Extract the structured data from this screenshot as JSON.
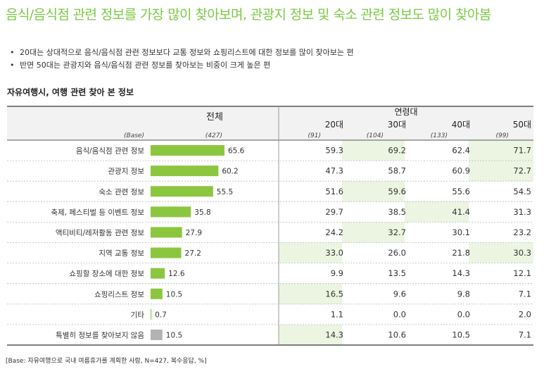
{
  "title": "음식/음식점 관련 정보를 가장 많이 찾아보며, 관광지 정보 및 숙소 관련 정보도 많이 찾아봄",
  "bullets": [
    "20대는 상대적으로 음식/음식점 관련 정보보다 교통 정보와 쇼핑리스트에 대한 정보를 많이 찾아보는 편",
    "반면 50대는 관광지와 음식/음식점 관련 정보를 찾아보는 비중이 크게 높은 편"
  ],
  "bullet_mark": "•",
  "subtitle": "자유여행시, 여행 관련 찾아 본 정보",
  "footer": "[Base: 자유여행으로 국내 여름휴가를 계획한 사람, N=427, 복수응답, %]",
  "colors": {
    "title": "#7ac943",
    "bar": "#8cc63f",
    "bar_muted": "#b3b3b3",
    "highlight": "#ebf5e1",
    "header_bg": "#f2f2f2"
  },
  "chart_data": {
    "type": "table",
    "total_header": "전체",
    "group_header": "연령대",
    "columns": [
      "20대",
      "30대",
      "40대",
      "50대"
    ],
    "base_label": "(Base)",
    "base_total": "(427)",
    "base_columns": [
      "(91)",
      "(104)",
      "(133)",
      "(99)"
    ],
    "bar_max": 100,
    "rows": [
      {
        "label": "음식/음식점 관련 정보",
        "total": 65.6,
        "values": [
          59.3,
          69.2,
          62.4,
          71.7
        ],
        "highlight": [
          false,
          true,
          false,
          true
        ],
        "muted": false
      },
      {
        "label": "관광지 정보",
        "total": 60.2,
        "values": [
          47.3,
          58.7,
          60.9,
          72.7
        ],
        "highlight": [
          false,
          false,
          false,
          true
        ],
        "muted": false
      },
      {
        "label": "숙소 관련 정보",
        "total": 55.5,
        "values": [
          51.6,
          59.6,
          55.6,
          54.5
        ],
        "highlight": [
          false,
          true,
          false,
          false
        ],
        "muted": false
      },
      {
        "label": "축제, 페스티벌 등 이벤트 정보",
        "total": 35.8,
        "values": [
          29.7,
          38.5,
          41.4,
          31.3
        ],
        "highlight": [
          false,
          false,
          true,
          false
        ],
        "muted": false
      },
      {
        "label": "액티비티/레저활동 관련 정보",
        "total": 27.9,
        "values": [
          24.2,
          32.7,
          30.1,
          23.2
        ],
        "highlight": [
          false,
          true,
          false,
          false
        ],
        "muted": false
      },
      {
        "label": "지역 교통 정보",
        "total": 27.2,
        "values": [
          33.0,
          26.0,
          21.8,
          30.3
        ],
        "highlight": [
          true,
          false,
          false,
          true
        ],
        "muted": false
      },
      {
        "label": "쇼핑할 장소에 대한 정보",
        "total": 12.6,
        "values": [
          9.9,
          13.5,
          14.3,
          12.1
        ],
        "highlight": [
          false,
          false,
          false,
          false
        ],
        "muted": false
      },
      {
        "label": "쇼핑리스트 정보",
        "total": 10.5,
        "values": [
          16.5,
          9.6,
          9.8,
          7.1
        ],
        "highlight": [
          true,
          false,
          false,
          false
        ],
        "muted": false
      },
      {
        "label": "기타",
        "total": 0.7,
        "values": [
          1.1,
          0.0,
          0.0,
          2.0
        ],
        "highlight": [
          false,
          false,
          false,
          false
        ],
        "muted": false
      },
      {
        "label": "특별히 정보를 찾아보지 않음",
        "total": 10.5,
        "values": [
          14.3,
          10.6,
          10.5,
          7.1
        ],
        "highlight": [
          true,
          false,
          false,
          false
        ],
        "muted": true
      }
    ]
  }
}
